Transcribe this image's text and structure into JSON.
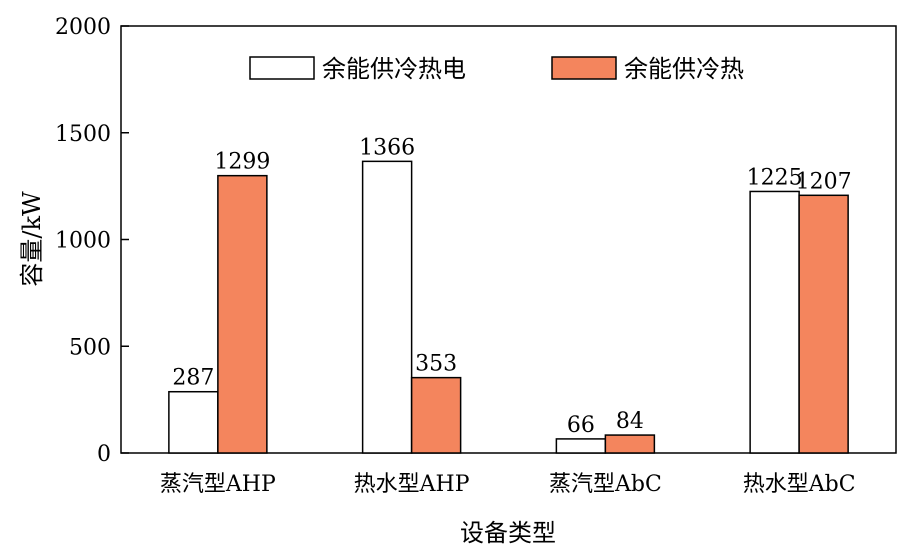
{
  "chart_data": {
    "type": "bar",
    "categories": [
      "蒸汽型AHP",
      "热水型AHP",
      "蒸汽型AbC",
      "热水型AbC"
    ],
    "series": [
      {
        "name": "余能供冷热电",
        "values": [
          287,
          1366,
          66,
          1225
        ],
        "color": "#ffffff"
      },
      {
        "name": "余能供冷热",
        "values": [
          1299,
          353,
          84,
          1207
        ],
        "color": "#f4855d"
      }
    ],
    "xlabel": "设备类型",
    "ylabel": "容量/kW",
    "ylim": [
      0,
      2000
    ],
    "yticks": [
      0,
      500,
      1000,
      1500,
      2000
    ],
    "legend_position": "top-center",
    "grid": false,
    "data_labels": true
  }
}
